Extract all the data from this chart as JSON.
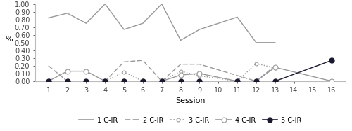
{
  "xlabel": "Session",
  "ylabel": "%",
  "ylim": [
    0.0,
    1.0
  ],
  "yticks": [
    0.0,
    0.1,
    0.2,
    0.3,
    0.4,
    0.5,
    0.6,
    0.7,
    0.8,
    0.9,
    1.0
  ],
  "xticks": [
    1,
    2,
    3,
    4,
    5,
    6,
    7,
    8,
    9,
    10,
    11,
    12,
    13,
    14,
    15,
    16
  ],
  "xlim": [
    0.3,
    16.7
  ],
  "background_color": "#ffffff",
  "mid_color": "#999999",
  "dark_color": "#1a1a2e",
  "series": {
    "1_CIR": {
      "x": [
        1,
        2,
        3,
        4,
        5,
        6,
        7,
        8,
        9,
        11,
        12,
        13
      ],
      "y": [
        0.82,
        0.88,
        0.75,
        1.0,
        0.67,
        0.75,
        1.0,
        0.53,
        0.67,
        0.83,
        0.5,
        0.5
      ],
      "linestyle": "solid",
      "marker": "none"
    },
    "2_CIR": {
      "x": [
        1,
        2,
        3,
        4,
        5,
        6,
        7,
        8,
        9,
        12,
        13
      ],
      "y": [
        0.2,
        0.0,
        0.0,
        0.0,
        0.25,
        0.27,
        0.0,
        0.22,
        0.22,
        0.0,
        0.2
      ],
      "linestyle": "dashed",
      "marker": "none"
    },
    "3_CIR": {
      "x": [
        1,
        2,
        3,
        4,
        5,
        6,
        7,
        8,
        9,
        11,
        12,
        13
      ],
      "y": [
        0.0,
        0.0,
        0.0,
        0.0,
        0.12,
        0.0,
        0.0,
        0.13,
        0.07,
        0.0,
        0.23,
        0.17
      ],
      "linestyle": "dotted",
      "marker": "o",
      "markersize": 3.5
    },
    "4_CIR": {
      "x": [
        1,
        2,
        3,
        4,
        5,
        6,
        7,
        8,
        9,
        11,
        12,
        13,
        16
      ],
      "y": [
        0.0,
        0.13,
        0.13,
        0.0,
        0.0,
        0.0,
        0.0,
        0.08,
        0.1,
        0.0,
        0.0,
        0.18,
        0.0
      ],
      "linestyle": "solid",
      "marker": "o",
      "markersize": 5
    },
    "5_CIR": {
      "x": [
        1,
        2,
        3,
        4,
        5,
        6,
        7,
        8,
        9,
        11,
        12,
        13,
        16
      ],
      "y": [
        0.0,
        0.0,
        0.0,
        0.0,
        0.0,
        0.0,
        0.0,
        0.0,
        0.0,
        0.0,
        0.0,
        0.0,
        0.27
      ],
      "linestyle": "solid",
      "marker": "o",
      "markersize": 5
    }
  },
  "legend_labels": [
    "1 C-IR",
    "2 C-IR",
    "3 C-IR",
    "4 C-IR",
    "5 C-IR"
  ],
  "tick_fontsize": 7,
  "label_fontsize": 8,
  "legend_fontsize": 7,
  "linewidth": 1.0
}
